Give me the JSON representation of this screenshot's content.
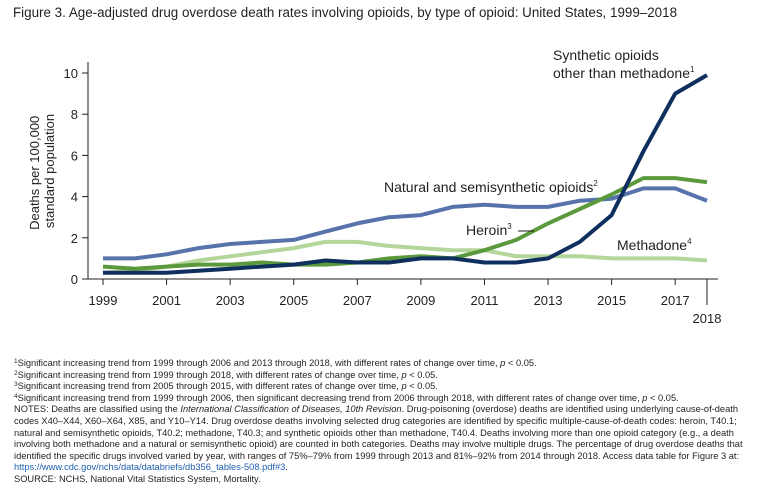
{
  "figure": {
    "title": "Figure 3. Age-adjusted drug overdose death rates involving opioids, by type of opioid: United States, 1999–2018"
  },
  "chart_data": {
    "type": "line",
    "x": [
      1999,
      2000,
      2001,
      2002,
      2003,
      2004,
      2005,
      2006,
      2007,
      2008,
      2009,
      2010,
      2011,
      2012,
      2013,
      2014,
      2015,
      2016,
      2017,
      2018
    ],
    "xticks": [
      "1999",
      "2001",
      "2003",
      "2005",
      "2007",
      "2009",
      "2011",
      "2013",
      "2015",
      "2017"
    ],
    "xtick_last": "2018",
    "xlim": [
      1999,
      2018
    ],
    "ylim": [
      0,
      10.5
    ],
    "yticks": [
      "0",
      "2",
      "4",
      "6",
      "8",
      "10"
    ],
    "ylabel_line1": "Deaths per 100,000",
    "ylabel_line2": "standard population",
    "grid": false,
    "series": [
      {
        "key": "synthetic",
        "color": "#0f2f5e",
        "values": [
          0.3,
          0.3,
          0.3,
          0.4,
          0.5,
          0.6,
          0.7,
          0.9,
          0.8,
          0.8,
          1.0,
          1.0,
          0.8,
          0.8,
          1.0,
          1.8,
          3.1,
          6.2,
          9.0,
          9.9
        ],
        "label_line1": "Synthetic opioids",
        "label_line2": "other than methadone",
        "label_sup": "1"
      },
      {
        "key": "natural",
        "color": "#5773ab",
        "values": [
          1.0,
          1.0,
          1.2,
          1.5,
          1.7,
          1.8,
          1.9,
          2.3,
          2.7,
          3.0,
          3.1,
          3.5,
          3.6,
          3.5,
          3.5,
          3.8,
          3.9,
          4.4,
          4.4,
          3.8
        ],
        "label": "Natural and semisynthetic opioids",
        "label_sup": "2"
      },
      {
        "key": "heroin",
        "color": "#5b9a3c",
        "values": [
          0.6,
          0.5,
          0.6,
          0.7,
          0.7,
          0.8,
          0.7,
          0.7,
          0.8,
          1.0,
          1.1,
          1.0,
          1.4,
          1.9,
          2.7,
          3.4,
          4.1,
          4.9,
          4.9,
          4.7
        ],
        "label": "Heroin",
        "label_sup": "3"
      },
      {
        "key": "methadone",
        "color": "#b5d69a",
        "values": [
          0.3,
          0.4,
          0.6,
          0.9,
          1.1,
          1.3,
          1.5,
          1.8,
          1.8,
          1.6,
          1.5,
          1.4,
          1.4,
          1.1,
          1.1,
          1.1,
          1.0,
          1.0,
          1.0,
          0.9
        ],
        "label": "Methadone",
        "label_sup": "4"
      }
    ]
  },
  "notes": {
    "n1_sup": "1",
    "n1_text": "Significant increasing trend from 1999 through 2006 and 2013 through 2018, with different rates of change over time, ",
    "n1_p": "p",
    "n1_tail": " < 0.05.",
    "n2_sup": "2",
    "n2_text": "Significant increasing trend from 1999 through 2018, with different rates of change over time, ",
    "n2_p": "p",
    "n2_tail": " < 0.05.",
    "n3_sup": "3",
    "n3_text": "Significant increasing trend from 2005 through 2015, with different rates of change over time, ",
    "n3_p": "p",
    "n3_tail": " < 0.05.",
    "n4_sup": "4",
    "n4_text": "Significant increasing trend from 1999 through 2006, then significant decreasing trend from 2006 through 2018, with different rates of change over time, ",
    "n4_p": "p",
    "n4_tail": " < 0.05.",
    "notes_a": "NOTES: Deaths are classified using the ",
    "notes_icd": "International Classification of Diseases, 10th Revision",
    "notes_b": ". Drug-poisoning (overdose) deaths are identified using underlying cause-of-death codes X40–X44, X60–X64, X85, and Y10–Y14. Drug overdose deaths involving selected drug categories are identified by specific multiple-cause-of-death codes: heroin, T40.1; natural and semisynthetic opioids, T40.2; methadone, T40.3; and synthetic opioids other than methadone, T40.4. Deaths involving more than one opioid category (e.g., a death involving both methadone and a natural or semisynthetic opioid) are counted in both categories. Deaths may involve multiple drugs. The percentage of drug overdose deaths that identified the specific drugs involved varied by year, with ranges of 75%–79% from 1999 through 2013 and 81%–92% from 2014 through 2018. Access data table for Figure 3 at: ",
    "notes_link": "https://www.cdc.gov/nchs/data/databriefs/db356_tables-508.pdf#3",
    "notes_end": ".",
    "source": "SOURCE: NCHS, National Vital Statistics System, Mortality."
  }
}
